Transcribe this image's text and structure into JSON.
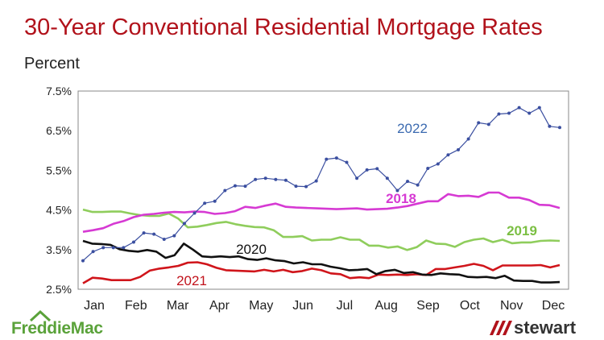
{
  "title": "30-Year Conventional Residential Mortgage Rates",
  "subtitle": "Percent",
  "logos": {
    "left": "FreddieMac",
    "right": "stewart"
  },
  "chart_data": {
    "type": "line",
    "ylim": [
      2.5,
      7.5
    ],
    "y_ticks": [
      "2.5%",
      "3.5%",
      "4.5%",
      "5.5%",
      "6.5%",
      "7.5%"
    ],
    "x_ticks": [
      "Jan",
      "Feb",
      "Mar",
      "Apr",
      "May",
      "Jun",
      "Jul",
      "Aug",
      "Sep",
      "Oct",
      "Nov",
      "Dec"
    ],
    "grid": false,
    "series": [
      {
        "name": "2022",
        "color": "#3b4fa0",
        "markers": true,
        "values": [
          3.22,
          3.45,
          3.55,
          3.55,
          3.55,
          3.69,
          3.92,
          3.89,
          3.76,
          3.85,
          4.16,
          4.42,
          4.67,
          4.72,
          4.99,
          5.11,
          5.1,
          5.27,
          5.3,
          5.27,
          5.25,
          5.1,
          5.09,
          5.23,
          5.78,
          5.81,
          5.7,
          5.3,
          5.51,
          5.54,
          5.3,
          4.99,
          5.22,
          5.13,
          5.55,
          5.66,
          5.89,
          6.02,
          6.29,
          6.7,
          6.66,
          6.92,
          6.94,
          7.08,
          6.94,
          7.08,
          6.61,
          6.58
        ]
      },
      {
        "name": "2018",
        "color": "#d63ad3",
        "markers": false,
        "values": [
          3.95,
          3.99,
          4.04,
          4.15,
          4.22,
          4.32,
          4.38,
          4.4,
          4.43,
          4.45,
          4.44,
          4.46,
          4.45,
          4.4,
          4.42,
          4.47,
          4.58,
          4.55,
          4.61,
          4.66,
          4.58,
          4.56,
          4.55,
          4.54,
          4.53,
          4.52,
          4.53,
          4.54,
          4.51,
          4.52,
          4.53,
          4.56,
          4.6,
          4.66,
          4.72,
          4.72,
          4.9,
          4.85,
          4.86,
          4.83,
          4.94,
          4.94,
          4.81,
          4.81,
          4.75,
          4.63,
          4.62,
          4.55
        ]
      },
      {
        "name": "2019",
        "color": "#8fcd5c",
        "markers": false,
        "values": [
          4.51,
          4.45,
          4.45,
          4.46,
          4.46,
          4.41,
          4.37,
          4.35,
          4.35,
          4.41,
          4.28,
          4.06,
          4.08,
          4.12,
          4.17,
          4.2,
          4.14,
          4.1,
          4.07,
          4.06,
          3.99,
          3.82,
          3.82,
          3.84,
          3.73,
          3.75,
          3.75,
          3.81,
          3.75,
          3.75,
          3.6,
          3.6,
          3.55,
          3.58,
          3.49,
          3.56,
          3.73,
          3.65,
          3.64,
          3.57,
          3.69,
          3.75,
          3.78,
          3.69,
          3.75,
          3.66,
          3.68,
          3.68,
          3.72,
          3.73,
          3.72
        ]
      },
      {
        "name": "2020",
        "color": "#111111",
        "markers": false,
        "values": [
          3.72,
          3.65,
          3.64,
          3.62,
          3.51,
          3.47,
          3.45,
          3.49,
          3.45,
          3.29,
          3.36,
          3.65,
          3.5,
          3.33,
          3.31,
          3.33,
          3.31,
          3.33,
          3.26,
          3.24,
          3.28,
          3.23,
          3.21,
          3.15,
          3.18,
          3.13,
          3.13,
          3.07,
          3.03,
          2.98,
          2.99,
          3.01,
          2.88,
          2.96,
          2.99,
          2.91,
          2.93,
          2.87,
          2.86,
          2.9,
          2.88,
          2.87,
          2.81,
          2.8,
          2.81,
          2.78,
          2.84,
          2.72,
          2.71,
          2.71,
          2.67,
          2.67,
          2.68
        ]
      },
      {
        "name": "2021",
        "color": "#d0151b",
        "markers": false,
        "values": [
          2.65,
          2.79,
          2.77,
          2.73,
          2.73,
          2.73,
          2.81,
          2.97,
          3.02,
          3.05,
          3.09,
          3.17,
          3.18,
          3.13,
          3.04,
          2.98,
          2.97,
          2.96,
          2.95,
          2.99,
          2.95,
          2.99,
          2.93,
          2.96,
          3.02,
          2.98,
          2.9,
          2.88,
          2.78,
          2.8,
          2.78,
          2.87,
          2.86,
          2.87,
          2.86,
          2.88,
          2.86,
          3.01,
          3.01,
          3.05,
          3.09,
          3.14,
          3.09,
          2.98,
          3.1,
          3.1,
          3.1,
          3.1,
          3.11,
          3.05,
          3.11
        ]
      }
    ]
  }
}
